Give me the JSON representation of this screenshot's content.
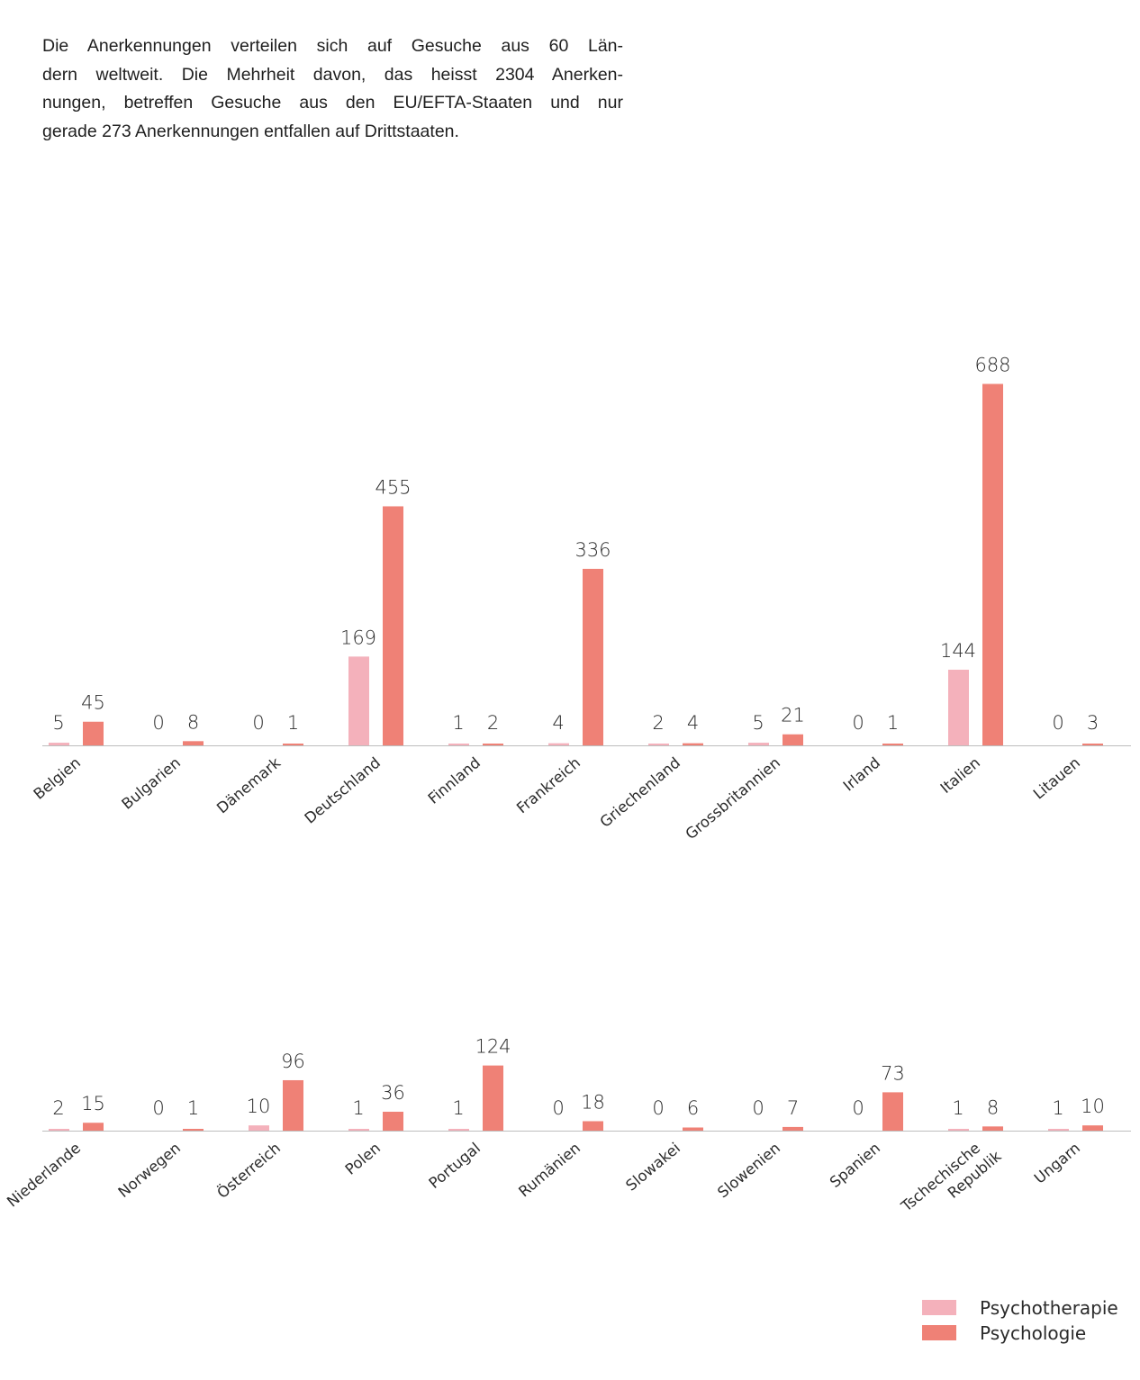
{
  "intro": {
    "lines": [
      "Die Anerkennungen verteilen sich auf Gesuche aus 60 Län-",
      "dern weltweit. Die Mehrheit davon, das heisst 2304 Anerken-",
      "nungen, betreffen Gesuche aus den EU/EFTA-Staaten und nur",
      "gerade 273 Anerkennungen entfallen auf Drittstaaten."
    ]
  },
  "colors": {
    "psychotherapie": "#f4b1bb",
    "psychologie": "#ef8176",
    "axis": "#bdbdbd"
  },
  "legend": {
    "items": [
      {
        "label": "Psychotherapie",
        "color": "#f4b1bb"
      },
      {
        "label": "Psychologie",
        "color": "#ef8176"
      }
    ],
    "position": "bottom-right"
  },
  "chart_data": [
    {
      "type": "bar",
      "categories": [
        "Belgien",
        "Bulgarien",
        "Dänemark",
        "Deutschland",
        "Finnland",
        "Frankreich",
        "Griechenland",
        "Grossbritannien",
        "Irland",
        "Italien",
        "Litauen"
      ],
      "series": [
        {
          "name": "Psychotherapie",
          "values": [
            5,
            0,
            0,
            169,
            1,
            4,
            2,
            5,
            0,
            144,
            0
          ]
        },
        {
          "name": "Psychologie",
          "values": [
            45,
            8,
            1,
            455,
            2,
            336,
            4,
            21,
            1,
            688,
            3
          ]
        }
      ],
      "ylim": [
        0,
        688
      ],
      "grid": false
    },
    {
      "type": "bar",
      "categories": [
        "Niederlande",
        "Norwegen",
        "Österreich",
        "Polen",
        "Portugal",
        "Rumänien",
        "Slowakei",
        "Slowenien",
        "Spanien",
        "Tschechische Republik",
        "Ungarn"
      ],
      "series": [
        {
          "name": "Psychotherapie",
          "values": [
            2,
            0,
            10,
            1,
            1,
            0,
            0,
            0,
            0,
            1,
            1
          ]
        },
        {
          "name": "Psychologie",
          "values": [
            15,
            1,
            96,
            36,
            124,
            18,
            6,
            7,
            73,
            8,
            10
          ]
        }
      ],
      "ylim": [
        0,
        688
      ],
      "grid": false
    }
  ]
}
